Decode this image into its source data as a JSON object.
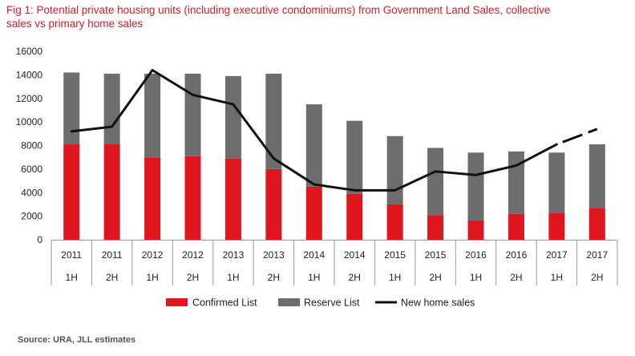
{
  "chart_data": {
    "type": "bar",
    "title": "Fig 1: Potential private housing units (including executive condominiums) from Government Land Sales, collective sales vs primary home sales",
    "categories": [
      [
        "2011",
        "1H"
      ],
      [
        "2011",
        "2H"
      ],
      [
        "2012",
        "1H"
      ],
      [
        "2012",
        "2H"
      ],
      [
        "2013",
        "1H"
      ],
      [
        "2013",
        "2H"
      ],
      [
        "2014",
        "1H"
      ],
      [
        "2014",
        "2H"
      ],
      [
        "2015",
        "1H"
      ],
      [
        "2015",
        "2H"
      ],
      [
        "2016",
        "1H"
      ],
      [
        "2016",
        "2H"
      ],
      [
        "2017",
        "1H"
      ],
      [
        "2017",
        "2H"
      ]
    ],
    "series": [
      {
        "name": "Confirmed List",
        "kind": "stacked-bar",
        "color": "#e0161e",
        "values": [
          8100,
          8100,
          7000,
          7100,
          6900,
          6000,
          4500,
          3900,
          3000,
          2100,
          1600,
          2200,
          2300,
          2700
        ]
      },
      {
        "name": "Reserve List",
        "kind": "stacked-bar",
        "color": "#6d6d6d",
        "values": [
          6100,
          6000,
          7100,
          7000,
          7000,
          8100,
          7000,
          6200,
          5800,
          5700,
          5800,
          5300,
          5100,
          5400
        ]
      },
      {
        "name": "New home sales",
        "kind": "line",
        "color": "#111111",
        "values": [
          9200,
          9600,
          14400,
          12300,
          11500,
          6900,
          4700,
          4200,
          4200,
          5800,
          5500,
          6300,
          8100,
          9400
        ],
        "dashed_from_index": 12
      }
    ],
    "ylim": [
      0,
      16000
    ],
    "yticks": [
      0,
      2000,
      4000,
      6000,
      8000,
      10000,
      12000,
      14000,
      16000
    ],
    "legend_position": "bottom-center"
  },
  "source": "Source: URA, JLL estimates"
}
